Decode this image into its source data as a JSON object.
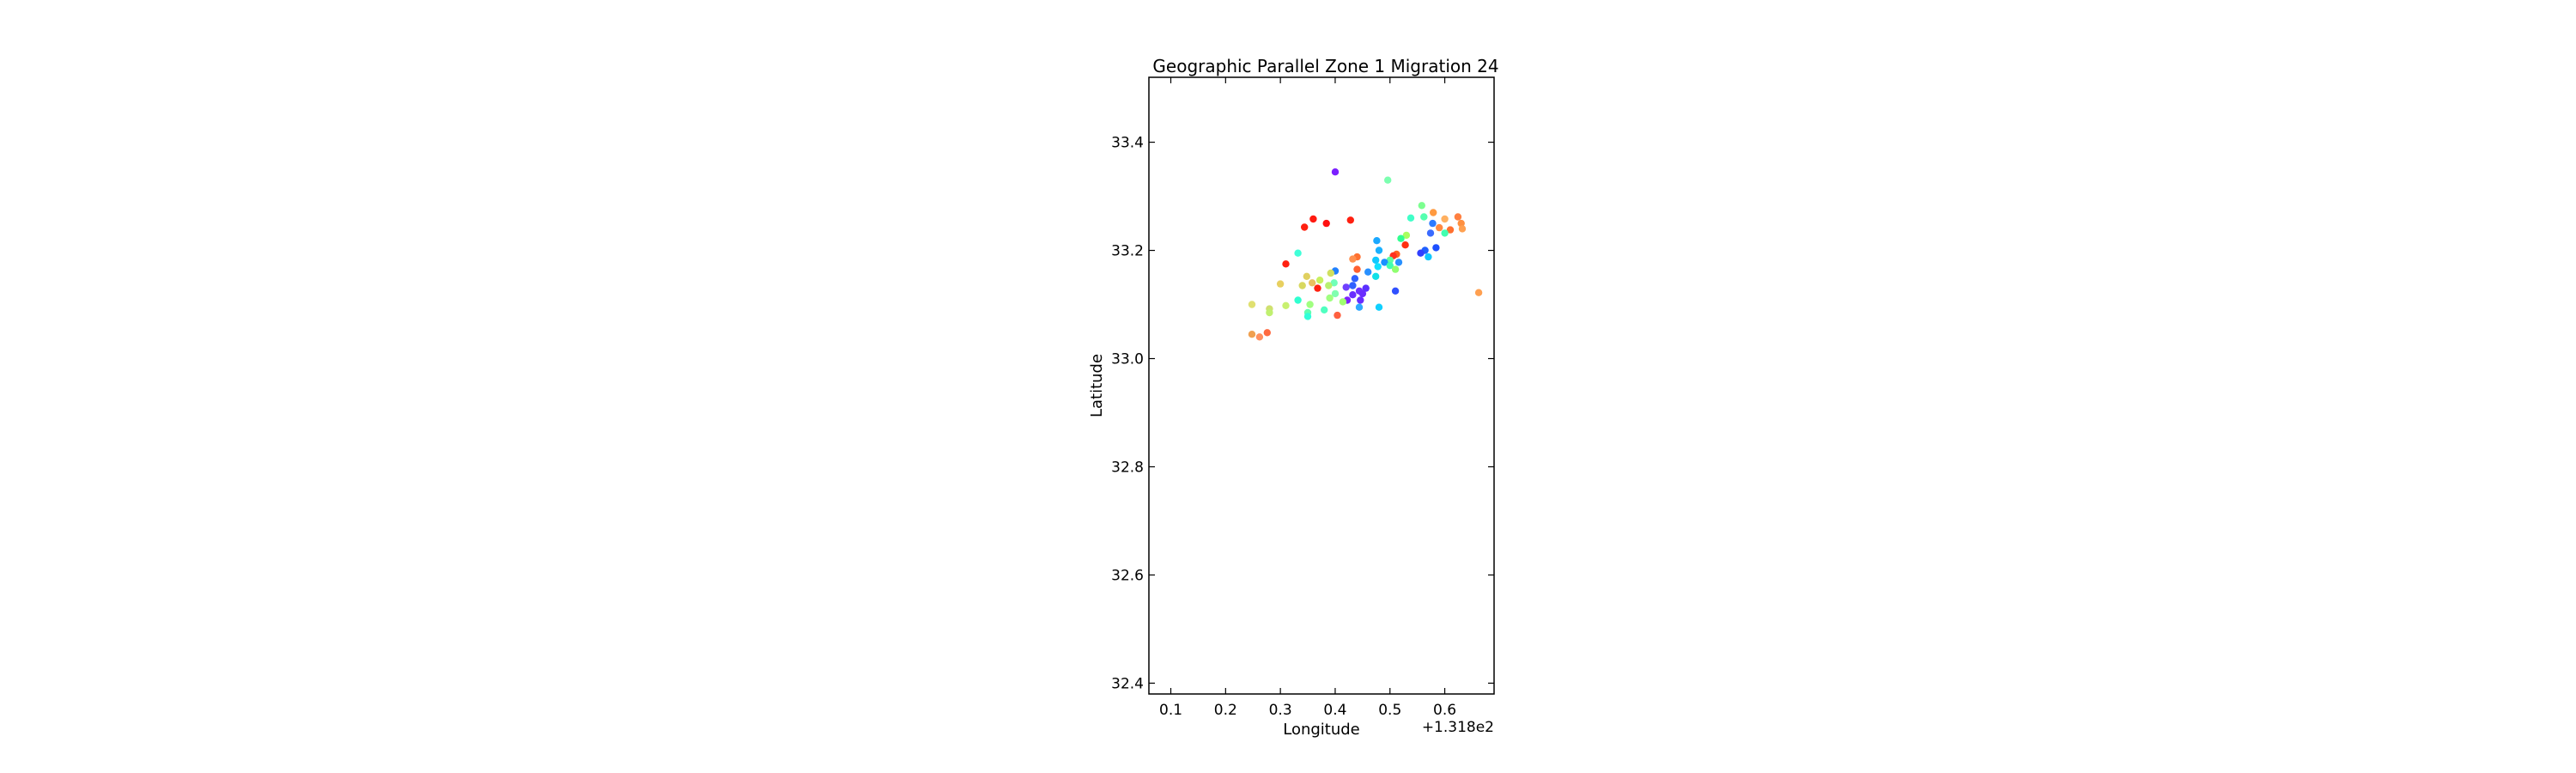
{
  "chart_data": {
    "type": "scatter",
    "title": "Geographic Parallel Zone 1 Migration 24",
    "xlabel": "Longitude",
    "ylabel": "Latitude",
    "x_offset_label": "+1.318e2",
    "xlim": [
      0.06,
      0.69
    ],
    "ylim": [
      32.38,
      33.52
    ],
    "x_ticks": [
      0.1,
      0.2,
      0.3,
      0.4,
      0.5,
      0.6
    ],
    "x_tick_labels": [
      "0.1",
      "0.2",
      "0.3",
      "0.4",
      "0.5",
      "0.6"
    ],
    "y_ticks": [
      32.4,
      32.6,
      32.8,
      33.0,
      33.2,
      33.4
    ],
    "y_tick_labels": [
      "32.4",
      "32.6",
      "32.8",
      "33.0",
      "33.2",
      "33.4"
    ],
    "grid": false,
    "legend": "none",
    "points": [
      {
        "x": 0.4,
        "y": 33.345,
        "color": "#7b1fff"
      },
      {
        "x": 0.496,
        "y": 33.33,
        "color": "#7cffb0"
      },
      {
        "x": 0.558,
        "y": 33.283,
        "color": "#7cff90"
      },
      {
        "x": 0.579,
        "y": 33.27,
        "color": "#ff9a40"
      },
      {
        "x": 0.538,
        "y": 33.26,
        "color": "#40ffc8"
      },
      {
        "x": 0.562,
        "y": 33.262,
        "color": "#56ffb0"
      },
      {
        "x": 0.624,
        "y": 33.262,
        "color": "#ff8040"
      },
      {
        "x": 0.63,
        "y": 33.25,
        "color": "#ff9040"
      },
      {
        "x": 0.6,
        "y": 33.258,
        "color": "#ffb060"
      },
      {
        "x": 0.59,
        "y": 33.242,
        "color": "#ff8a40"
      },
      {
        "x": 0.61,
        "y": 33.238,
        "color": "#ff7030"
      },
      {
        "x": 0.632,
        "y": 33.24,
        "color": "#ffa050"
      },
      {
        "x": 0.578,
        "y": 33.25,
        "color": "#2c7bff"
      },
      {
        "x": 0.36,
        "y": 33.258,
        "color": "#ff1a10"
      },
      {
        "x": 0.428,
        "y": 33.256,
        "color": "#ff2010"
      },
      {
        "x": 0.384,
        "y": 33.25,
        "color": "#ff1010"
      },
      {
        "x": 0.344,
        "y": 33.243,
        "color": "#ff2010"
      },
      {
        "x": 0.574,
        "y": 33.232,
        "color": "#3a6bff"
      },
      {
        "x": 0.6,
        "y": 33.232,
        "color": "#40ffb0"
      },
      {
        "x": 0.53,
        "y": 33.228,
        "color": "#a8ff60"
      },
      {
        "x": 0.52,
        "y": 33.222,
        "color": "#30ff90"
      },
      {
        "x": 0.476,
        "y": 33.218,
        "color": "#1aa8ff"
      },
      {
        "x": 0.528,
        "y": 33.21,
        "color": "#ff3010"
      },
      {
        "x": 0.584,
        "y": 33.205,
        "color": "#1e50ff"
      },
      {
        "x": 0.564,
        "y": 33.2,
        "color": "#2060ff"
      },
      {
        "x": 0.556,
        "y": 33.195,
        "color": "#3040ff"
      },
      {
        "x": 0.48,
        "y": 33.2,
        "color": "#1ab0ff"
      },
      {
        "x": 0.332,
        "y": 33.195,
        "color": "#40ffd8"
      },
      {
        "x": 0.512,
        "y": 33.193,
        "color": "#ff6020"
      },
      {
        "x": 0.506,
        "y": 33.19,
        "color": "#ff3020"
      },
      {
        "x": 0.57,
        "y": 33.188,
        "color": "#10c8ff"
      },
      {
        "x": 0.44,
        "y": 33.188,
        "color": "#ff7030"
      },
      {
        "x": 0.432,
        "y": 33.184,
        "color": "#ff9050"
      },
      {
        "x": 0.5,
        "y": 33.182,
        "color": "#60ffa0"
      },
      {
        "x": 0.474,
        "y": 33.182,
        "color": "#10c8ff"
      },
      {
        "x": 0.49,
        "y": 33.178,
        "color": "#1a90ff"
      },
      {
        "x": 0.516,
        "y": 33.178,
        "color": "#2890ff"
      },
      {
        "x": 0.5,
        "y": 33.172,
        "color": "#40ffb0"
      },
      {
        "x": 0.31,
        "y": 33.175,
        "color": "#ff2010"
      },
      {
        "x": 0.478,
        "y": 33.17,
        "color": "#10e0ff"
      },
      {
        "x": 0.51,
        "y": 33.165,
        "color": "#90ff70"
      },
      {
        "x": 0.44,
        "y": 33.165,
        "color": "#ff6030"
      },
      {
        "x": 0.4,
        "y": 33.162,
        "color": "#2080ff"
      },
      {
        "x": 0.46,
        "y": 33.16,
        "color": "#2890ff"
      },
      {
        "x": 0.392,
        "y": 33.158,
        "color": "#d0e060"
      },
      {
        "x": 0.348,
        "y": 33.152,
        "color": "#e0d060"
      },
      {
        "x": 0.474,
        "y": 33.152,
        "color": "#10e0e8"
      },
      {
        "x": 0.436,
        "y": 33.148,
        "color": "#3060ff"
      },
      {
        "x": 0.372,
        "y": 33.145,
        "color": "#c8f060"
      },
      {
        "x": 0.358,
        "y": 33.14,
        "color": "#e8c060"
      },
      {
        "x": 0.3,
        "y": 33.138,
        "color": "#e8d060"
      },
      {
        "x": 0.34,
        "y": 33.135,
        "color": "#d8d860"
      },
      {
        "x": 0.398,
        "y": 33.14,
        "color": "#70ffb8"
      },
      {
        "x": 0.388,
        "y": 33.135,
        "color": "#b8f070"
      },
      {
        "x": 0.42,
        "y": 33.132,
        "color": "#7040ff"
      },
      {
        "x": 0.432,
        "y": 33.135,
        "color": "#3060ff"
      },
      {
        "x": 0.456,
        "y": 33.13,
        "color": "#5a30ff"
      },
      {
        "x": 0.368,
        "y": 33.13,
        "color": "#ff2010"
      },
      {
        "x": 0.444,
        "y": 33.125,
        "color": "#7030ff"
      },
      {
        "x": 0.51,
        "y": 33.125,
        "color": "#3050ff"
      },
      {
        "x": 0.45,
        "y": 33.12,
        "color": "#6a2cff"
      },
      {
        "x": 0.4,
        "y": 33.12,
        "color": "#80ffb0"
      },
      {
        "x": 0.432,
        "y": 33.118,
        "color": "#6a2cff"
      },
      {
        "x": 0.422,
        "y": 33.108,
        "color": "#7c20ff"
      },
      {
        "x": 0.446,
        "y": 33.108,
        "color": "#6a2cff"
      },
      {
        "x": 0.39,
        "y": 33.112,
        "color": "#a0ff80"
      },
      {
        "x": 0.332,
        "y": 33.108,
        "color": "#30ffd0"
      },
      {
        "x": 0.414,
        "y": 33.105,
        "color": "#a0ff70"
      },
      {
        "x": 0.248,
        "y": 33.1,
        "color": "#e0e070"
      },
      {
        "x": 0.662,
        "y": 33.122,
        "color": "#ffa050"
      },
      {
        "x": 0.354,
        "y": 33.1,
        "color": "#a0ff80"
      },
      {
        "x": 0.31,
        "y": 33.098,
        "color": "#c8f070"
      },
      {
        "x": 0.444,
        "y": 33.095,
        "color": "#30a8ff"
      },
      {
        "x": 0.48,
        "y": 33.095,
        "color": "#10d0ff"
      },
      {
        "x": 0.28,
        "y": 33.092,
        "color": "#d0e070"
      },
      {
        "x": 0.38,
        "y": 33.09,
        "color": "#50ffc0"
      },
      {
        "x": 0.35,
        "y": 33.085,
        "color": "#60ffb0"
      },
      {
        "x": 0.28,
        "y": 33.085,
        "color": "#c0f070"
      },
      {
        "x": 0.404,
        "y": 33.08,
        "color": "#ff6040"
      },
      {
        "x": 0.35,
        "y": 33.078,
        "color": "#30ffd8"
      },
      {
        "x": 0.276,
        "y": 33.048,
        "color": "#ff6a40"
      },
      {
        "x": 0.248,
        "y": 33.045,
        "color": "#f0a050"
      },
      {
        "x": 0.262,
        "y": 33.04,
        "color": "#ff9060"
      }
    ]
  }
}
